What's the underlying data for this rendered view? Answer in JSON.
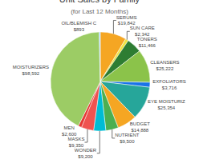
{
  "chart_data": {
    "type": "pie",
    "title": "Unit Sales by Family",
    "subtitle": "(for Last 12 Months)",
    "categories": [
      "SERUMS",
      "SUN CARE",
      "TONERS",
      "CLEANSERS",
      "EXFOLIATORS",
      "EYE MOISTURIZ",
      "BUDGET",
      "NUTRIENT",
      "WONDER",
      "MASKS",
      "MEN",
      "MOISTURIZERS",
      "OIL/BLEMISH C"
    ],
    "values": [
      19842,
      2342,
      11466,
      25222,
      3716,
      25354,
      14888,
      9500,
      9200,
      9350,
      2600,
      98592,
      893
    ],
    "value_labels": [
      "$19,842",
      "$2,342",
      "$11,466",
      "$25,222",
      "$3,716",
      "$25,354",
      "$14,888",
      "$9,500",
      "$9,200",
      "$9,350",
      "$2,600",
      "$98,592",
      "$893"
    ],
    "colors": [
      "#f5a623",
      "#f0e442",
      "#2e7d32",
      "#8bc34a",
      "#1a73e8",
      "#26a69a",
      "#f5a623",
      "#4caf50",
      "#00bcd4",
      "#ef5350",
      "#e53935",
      "#9ccc65",
      "#90caf9"
    ],
    "data_labels": true
  }
}
